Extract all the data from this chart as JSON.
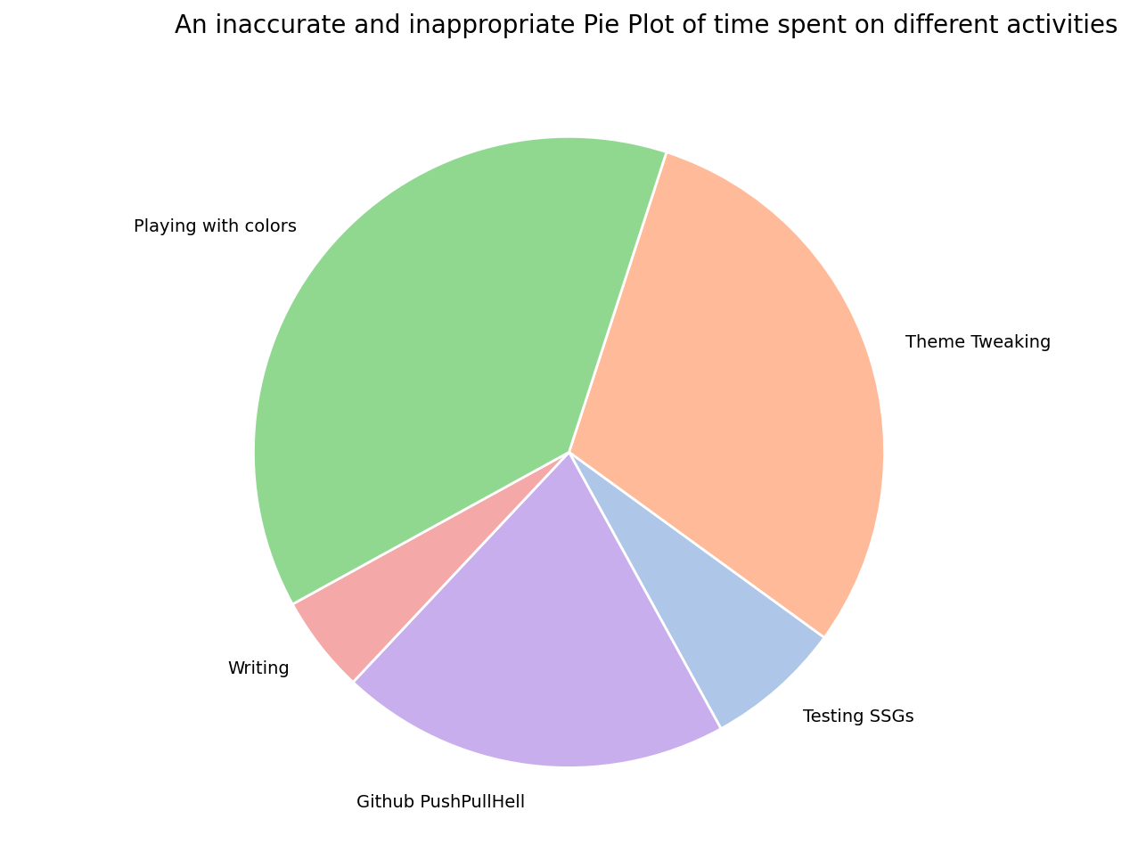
{
  "title": "An inaccurate and inappropriate Pie Plot of time spent on different activities",
  "labels": [
    "Theme Tweaking",
    "Testing SSGs",
    "Github PushPullHell",
    "Writing",
    "Playing with colors"
  ],
  "sizes": [
    30,
    7,
    20,
    5,
    38
  ],
  "colors": [
    "#FFBB99",
    "#AEC6E8",
    "#C9AEED",
    "#F4A9A8",
    "#90D890"
  ],
  "startangle": 72,
  "title_fontsize": 20,
  "label_fontsize": 14,
  "background_color": "#ffffff"
}
